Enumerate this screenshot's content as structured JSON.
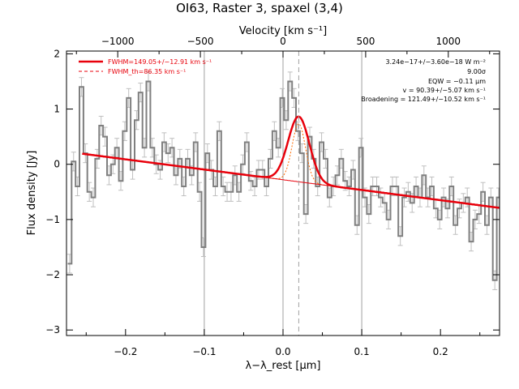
{
  "chart_data": {
    "type": "line",
    "title": "OI63, Raster 3, spaxel (3,4)",
    "xlabel": "λ−λ_rest [μm]",
    "ylabel": "Flux density [Jy]",
    "top_axis_label": "Velocity [km s⁻¹]",
    "xlim": [
      -0.275,
      0.275
    ],
    "ylim": [
      -3.1,
      2.05
    ],
    "top_xlim": [
      -1310,
      1310
    ],
    "x_ticks": [
      -0.2,
      -0.1,
      0.0,
      0.1,
      0.2
    ],
    "x_tick_labels": [
      "−0.2",
      "−0.1",
      "0.0",
      "0.1",
      "0.2"
    ],
    "y_ticks": [
      -3,
      -2,
      -1,
      0,
      1,
      2
    ],
    "y_tick_labels": [
      "−3",
      "−2",
      "−1",
      "0",
      "1",
      "2"
    ],
    "top_ticks": [
      -1000,
      -500,
      0,
      500,
      1000
    ],
    "top_tick_labels": [
      "−1000",
      "−500",
      "0",
      "500",
      "1000"
    ],
    "reference_lines_x": [
      -0.1,
      0.0,
      0.1
    ],
    "line_center_x": 0.02,
    "colors": {
      "data": "#7f7f7f",
      "errors": "#bfbfbf",
      "fit": "#e8000b",
      "components": "#ff6a00",
      "reference": "#a0a0a0"
    },
    "legend": {
      "placement": "top-left",
      "entries": [
        {
          "label": "FWHM=149.05+/−12.91 km s⁻¹",
          "style": "solid"
        },
        {
          "label": "FWHM_th=86.35 km s⁻¹",
          "style": "dashed"
        }
      ]
    },
    "annotations": [
      "3.24e−17+/−3.60e−18 W m⁻²",
      "9.00σ",
      "EQW = −0.11 μm",
      "v = 90.39+/−5.07 km s⁻¹",
      "Broadening = 121.49+/−10.52 km s⁻¹"
    ],
    "series": [
      {
        "x": [
          -0.271,
          -0.266,
          -0.261,
          -0.256,
          -0.251,
          -0.246,
          -0.241,
          -0.236,
          -0.231,
          -0.226,
          -0.221,
          -0.216,
          -0.211,
          -0.206,
          -0.201,
          -0.196,
          -0.191,
          -0.186,
          -0.181,
          -0.176,
          -0.171,
          -0.166,
          -0.161,
          -0.156,
          -0.151,
          -0.146,
          -0.141,
          -0.136,
          -0.131,
          -0.126,
          -0.121,
          -0.116,
          -0.111,
          -0.106,
          -0.101,
          -0.096,
          -0.091,
          -0.086,
          -0.081,
          -0.076,
          -0.071,
          -0.066,
          -0.061,
          -0.056,
          -0.051,
          -0.046,
          -0.041,
          -0.036,
          -0.031,
          -0.026,
          -0.021,
          -0.016,
          -0.011,
          -0.006,
          -0.001,
          0.004,
          0.009,
          0.014,
          0.019,
          0.024,
          0.029,
          0.034,
          0.039,
          0.044,
          0.049,
          0.054,
          0.059,
          0.064,
          0.069,
          0.074,
          0.079,
          0.084,
          0.089,
          0.094,
          0.099,
          0.104,
          0.109,
          0.114,
          0.119,
          0.124,
          0.129,
          0.134,
          0.139,
          0.144,
          0.149,
          0.154,
          0.159,
          0.164,
          0.169,
          0.174,
          0.179,
          0.184,
          0.189,
          0.194,
          0.199,
          0.204,
          0.209,
          0.214,
          0.219,
          0.224,
          0.229,
          0.234,
          0.239,
          0.244,
          0.249,
          0.254,
          0.259,
          0.264,
          0.269,
          0.274
        ],
        "y": [
          -1.8,
          0.05,
          -0.4,
          1.4,
          0.2,
          -0.5,
          -0.6,
          0.1,
          0.7,
          0.5,
          -0.2,
          0.0,
          0.3,
          -0.3,
          0.6,
          1.2,
          -0.1,
          0.8,
          1.3,
          0.3,
          1.5,
          0.3,
          0.0,
          -0.1,
          0.4,
          0.2,
          0.3,
          -0.2,
          0.1,
          -0.4,
          0.1,
          -0.2,
          0.4,
          -0.5,
          -1.5,
          0.2,
          -0.1,
          -0.4,
          0.6,
          -0.4,
          -0.5,
          -0.5,
          -0.2,
          -0.5,
          0.0,
          0.4,
          -0.3,
          -0.4,
          -0.1,
          -0.1,
          -0.4,
          0.1,
          0.6,
          0.3,
          1.2,
          0.8,
          1.5,
          1.2,
          0.6,
          0.2,
          -0.9,
          0.5,
          0.1,
          -0.4,
          0.4,
          0.1,
          -0.6,
          -0.4,
          -0.2,
          0.1,
          -0.3,
          -0.4,
          -0.1,
          -1.1,
          0.3,
          -0.6,
          -0.9,
          -0.4,
          -0.4,
          -0.6,
          -0.7,
          -1.0,
          -0.4,
          -0.4,
          -1.3,
          -0.6,
          -0.5,
          -0.7,
          -0.4,
          -0.6,
          -0.2,
          -0.6,
          -0.4,
          -0.8,
          -1.0,
          -0.6,
          -0.8,
          -0.4,
          -1.1,
          -0.8,
          -0.7,
          -0.6,
          -1.4,
          -1.0,
          -0.9,
          -0.5,
          -1.1,
          -0.6,
          -2.1,
          -0.6
        ],
        "errors": 0.17
      }
    ]
  }
}
